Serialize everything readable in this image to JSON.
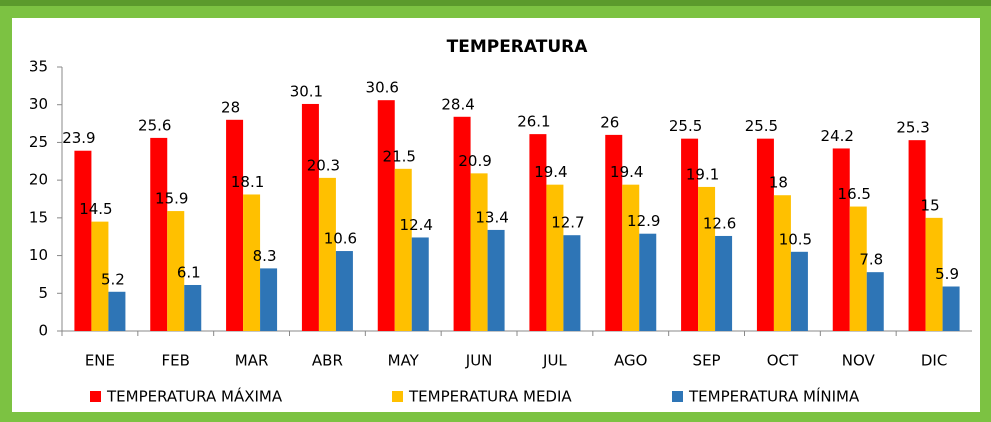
{
  "chart_data": {
    "type": "bar",
    "title": "TEMPERATURA",
    "categories": [
      "ENE",
      "FEB",
      "MAR",
      "ABR",
      "MAY",
      "JUN",
      "JUL",
      "AGO",
      "SEP",
      "OCT",
      "NOV",
      "DIC"
    ],
    "series": [
      {
        "name": "TEMPERATURA MÁXIMA",
        "color": "#ff0000",
        "values": [
          23.9,
          25.6,
          28,
          30.1,
          30.6,
          28.4,
          26.1,
          26,
          25.5,
          25.5,
          24.2,
          25.3
        ]
      },
      {
        "name": "TEMPERATURA MEDIA",
        "color": "#ffc000",
        "values": [
          14.5,
          15.9,
          18.1,
          20.3,
          21.5,
          20.9,
          19.4,
          19.4,
          19.1,
          18,
          16.5,
          15
        ]
      },
      {
        "name": "TEMPERATURA MÍNIMA",
        "color": "#2e75b6",
        "values": [
          5.2,
          6.1,
          8.3,
          10.6,
          12.4,
          13.4,
          12.7,
          12.9,
          12.6,
          10.5,
          7.8,
          5.9
        ]
      }
    ],
    "ylim": [
      0,
      35
    ],
    "yticks": [
      0,
      5,
      10,
      15,
      20,
      25,
      30,
      35
    ],
    "grid": false,
    "legend": "bottom"
  }
}
